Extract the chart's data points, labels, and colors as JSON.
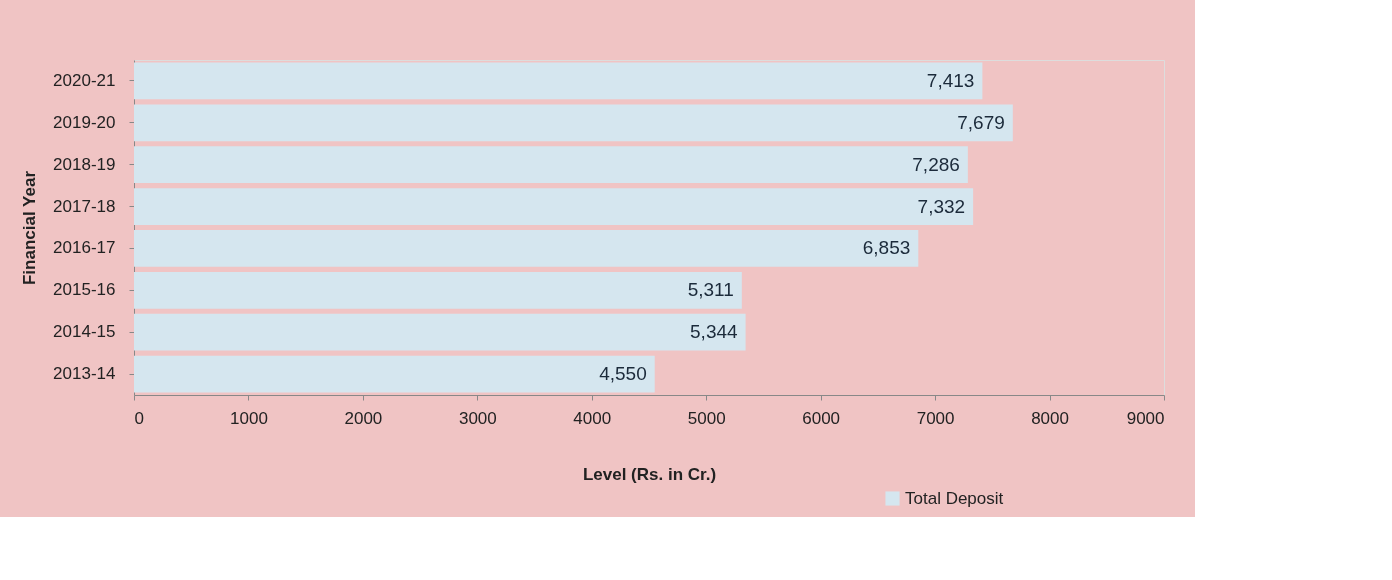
{
  "chart_data": {
    "type": "bar",
    "orientation": "horizontal",
    "xlabel": "Level (Rs. in Cr.)",
    "ylabel": "Financial Year",
    "categories": [
      "2020-21",
      "2019-20",
      "2018-19",
      "2017-18",
      "2016-17",
      "2015-16",
      "2014-15",
      "2013-14"
    ],
    "series": [
      {
        "name": "Total Deposit",
        "color": "#d5e6ef",
        "values": [
          7413,
          7679,
          7286,
          7332,
          6853,
          5311,
          5344,
          4550
        ]
      }
    ],
    "xlim": [
      0,
      9000
    ],
    "xticks": [
      0,
      1000,
      2000,
      3000,
      4000,
      5000,
      6000,
      7000,
      8000,
      9000
    ],
    "grid": false,
    "legend": "bottom right",
    "value_labels": [
      "7,413",
      "7,679",
      "7,286",
      "7,332",
      "6,853",
      "5,311",
      "5,344",
      "4,550"
    ]
  }
}
